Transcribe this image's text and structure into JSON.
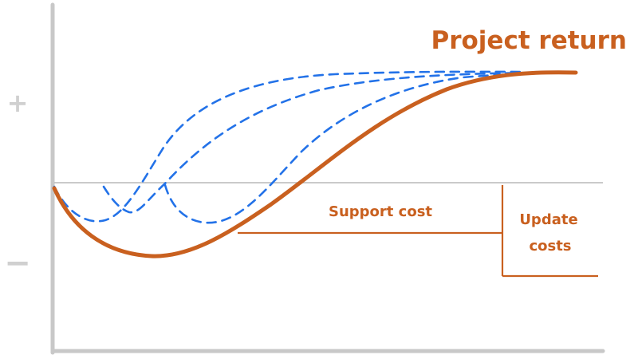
{
  "title": "Project return",
  "axis_signs": {
    "positive": "+",
    "negative": "−"
  },
  "labels": {
    "support_cost": "Support cost",
    "update_costs_line1": "Update",
    "update_costs_line2": "costs"
  },
  "colors": {
    "project_curve": "#c9601f",
    "update_curves": "#2372e8",
    "axis": "#c8c8c8",
    "baseline": "#b8b8b8",
    "annotation_text": "#c9601f",
    "signs": "#d0d0d0"
  }
}
